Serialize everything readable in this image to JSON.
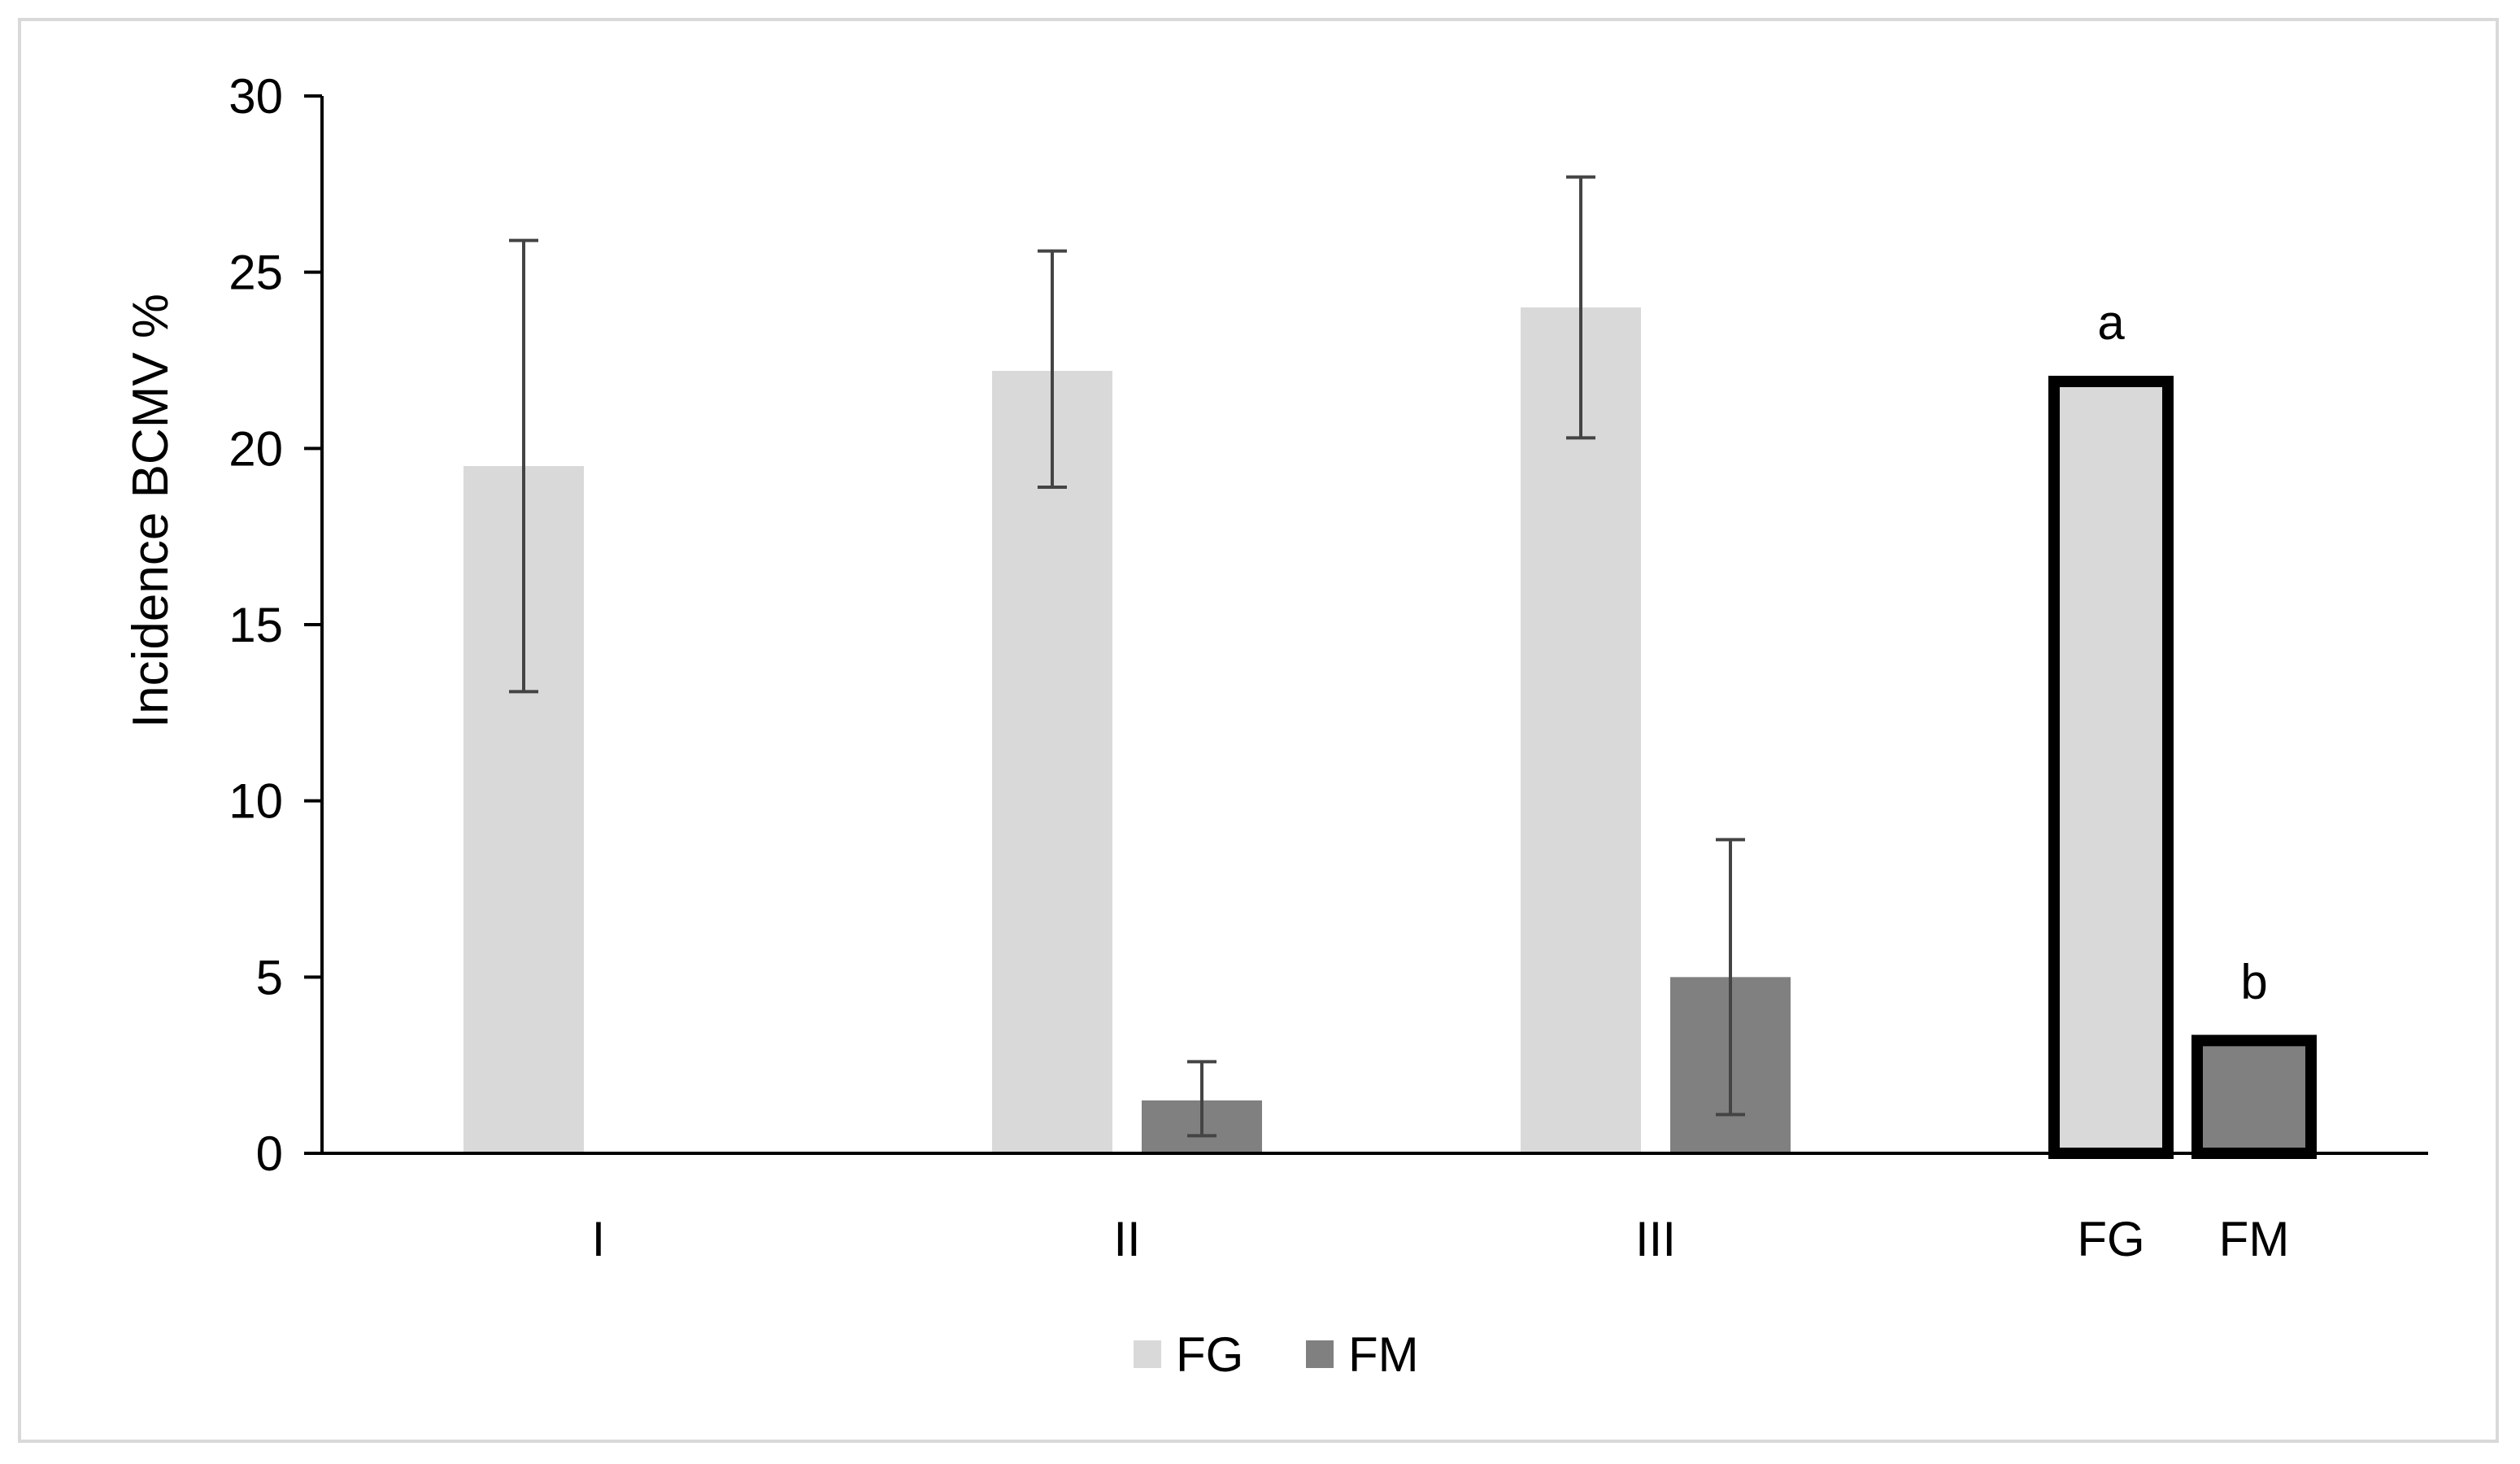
{
  "chart_data": {
    "type": "bar",
    "title": "",
    "xlabel": "",
    "ylabel": "Incidence  BCMV %",
    "ylim": [
      0,
      30
    ],
    "yticks": [
      0,
      5,
      10,
      15,
      20,
      25,
      30
    ],
    "grid": false,
    "legend_position": "bottom-center",
    "groups": [
      {
        "label": "I",
        "bars": [
          {
            "series": "FG",
            "value": 19.5,
            "error_low": 13.1,
            "error_high": 25.9
          },
          {
            "series": "FM",
            "value": 0
          }
        ]
      },
      {
        "label": "II",
        "bars": [
          {
            "series": "FG",
            "value": 22.2,
            "error_low": 18.9,
            "error_high": 25.6
          },
          {
            "series": "FM",
            "value": 1.5,
            "error_low": 0.5,
            "error_high": 2.6
          }
        ]
      },
      {
        "label": "III",
        "bars": [
          {
            "series": "FG",
            "value": 24.0,
            "error_low": 20.3,
            "error_high": 27.7
          },
          {
            "series": "FM",
            "value": 5.0,
            "error_low": 1.1,
            "error_high": 8.9
          }
        ]
      }
    ],
    "summary": {
      "categories": [
        "FG",
        "FM"
      ],
      "bars": [
        {
          "series": "FG",
          "label": "FG",
          "value": 21.9,
          "letter": "a"
        },
        {
          "series": "FM",
          "label": "FM",
          "value": 3.2,
          "letter": "b"
        }
      ]
    },
    "series": [
      {
        "name": "FG",
        "color": "#d9d9d9"
      },
      {
        "name": "FM",
        "color": "#808080"
      }
    ]
  }
}
